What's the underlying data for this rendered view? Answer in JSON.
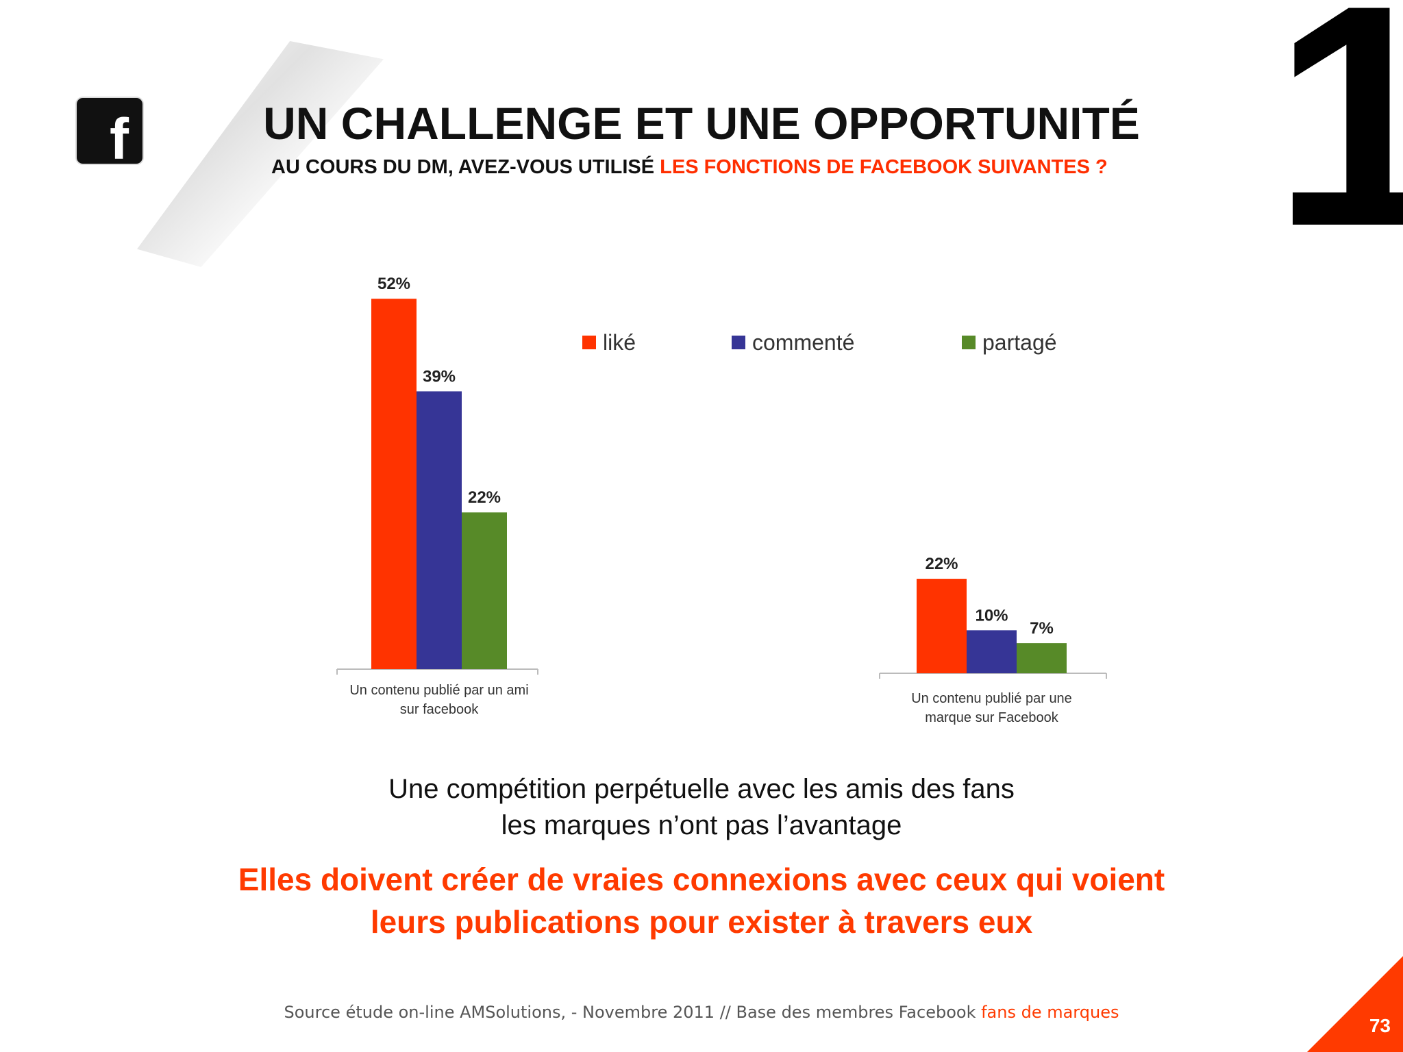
{
  "slide": {
    "title": "UN CHALLENGE ET UNE OPPORTUNITÉ",
    "subtitle_prefix": "AU COURS DU DM, AVEZ-VOUS UTILISÉ ",
    "subtitle_accent": "LES FONCTIONS DE FACEBOOK SUIVANTES ?",
    "section_number": "1",
    "page_number": "73",
    "logo_icon": "facebook-icon",
    "logo_text": "f"
  },
  "statement": {
    "line1": "Une compétition perpétuelle avec les amis des fans",
    "line2": "les marques n’ont pas l’avantage"
  },
  "highlight": {
    "line1": "Elles doivent créer de vraies connexions avec ceux qui voient",
    "line2": "leurs publications pour exister à travers eux"
  },
  "source": {
    "text": "Source étude on-line AMSolutions, - Novembre 2011 // Base des membres Facebook ",
    "accent": "fans de marques"
  },
  "colors": {
    "accent": "#ff3a00",
    "like": "#ff3300",
    "comment": "#363596",
    "share": "#578a28"
  },
  "chart_data": [
    {
      "type": "bar",
      "categories": [
        "Un contenu publié par un ami sur facebook"
      ],
      "category_lines": [
        "Un contenu publié par un ami",
        "sur facebook"
      ],
      "series": [
        {
          "name": "liké",
          "values": [
            52
          ],
          "labels": [
            "52%"
          ]
        },
        {
          "name": "commenté",
          "values": [
            39
          ],
          "labels": [
            "39%"
          ]
        },
        {
          "name": "partagé",
          "values": [
            22
          ],
          "labels": [
            "22%"
          ]
        }
      ],
      "unit": "%",
      "legend": {
        "placement": "top-right"
      }
    },
    {
      "type": "bar",
      "categories": [
        "Un contenu publié par une marque sur Facebook"
      ],
      "category_lines": [
        "Un contenu publié par une",
        "marque sur Facebook"
      ],
      "series": [
        {
          "name": "liké",
          "values": [
            22
          ],
          "labels": [
            "22%"
          ]
        },
        {
          "name": "commenté",
          "values": [
            10
          ],
          "labels": [
            "10%"
          ]
        },
        {
          "name": "partagé",
          "values": [
            7
          ],
          "labels": [
            "7%"
          ]
        }
      ],
      "unit": "%"
    }
  ]
}
